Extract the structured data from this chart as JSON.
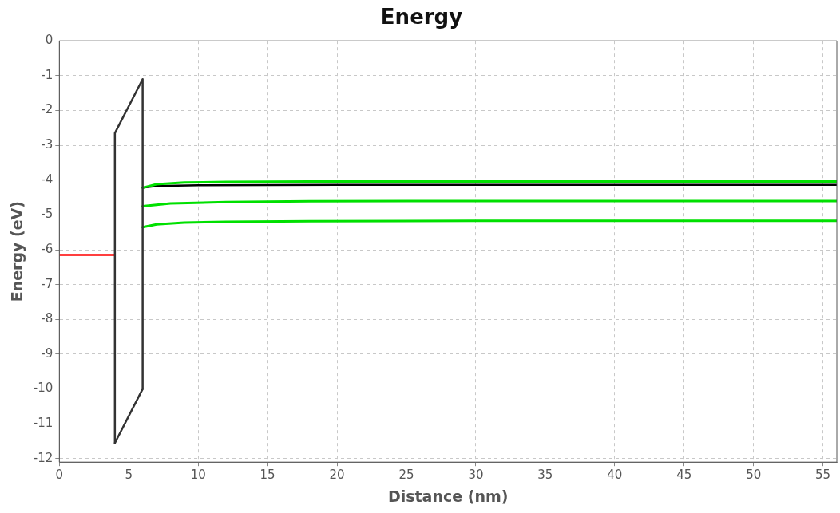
{
  "chart_data": {
    "type": "line",
    "title": "Energy",
    "xlabel": "Distance (nm)",
    "ylabel": "Energy (eV)",
    "xlim": [
      0,
      56
    ],
    "ylim": [
      -12.1,
      0
    ],
    "xticks": [
      0,
      5,
      10,
      15,
      20,
      25,
      30,
      35,
      40,
      45,
      50,
      55
    ],
    "yticks": [
      0,
      -1,
      -2,
      -3,
      -4,
      -5,
      -6,
      -7,
      -8,
      -9,
      -10,
      -11,
      -12
    ],
    "grid": true,
    "legend": false,
    "marker": "none",
    "line_style": "solid",
    "series": [
      {
        "color": "#333333",
        "x": [
          4,
          4,
          6,
          6
        ],
        "values": [
          -11.55,
          -2.65,
          -1.1,
          -10.0
        ]
      },
      {
        "color": "#333333",
        "x": [
          4,
          6
        ],
        "values": [
          -11.55,
          -10.0
        ]
      },
      {
        "color": "#ff0000",
        "x": [
          0,
          4
        ],
        "values": [
          -6.15,
          -6.15
        ]
      },
      {
        "color": "#00e000",
        "x": [
          6,
          7,
          9,
          12,
          18,
          30,
          56
        ],
        "values": [
          -4.22,
          -4.12,
          -4.07,
          -4.05,
          -4.04,
          -4.04,
          -4.04
        ]
      },
      {
        "color": "#000000",
        "x": [
          6,
          7,
          10,
          20,
          56
        ],
        "values": [
          -4.22,
          -4.17,
          -4.15,
          -4.14,
          -4.14
        ]
      },
      {
        "color": "#00e000",
        "x": [
          6,
          8,
          12,
          18,
          30,
          56
        ],
        "values": [
          -4.75,
          -4.67,
          -4.63,
          -4.61,
          -4.6,
          -4.6
        ]
      },
      {
        "color": "#00e000",
        "x": [
          6,
          7,
          9,
          12,
          18,
          30,
          56
        ],
        "values": [
          -5.35,
          -5.27,
          -5.22,
          -5.2,
          -5.18,
          -5.17,
          -5.17
        ]
      }
    ]
  }
}
